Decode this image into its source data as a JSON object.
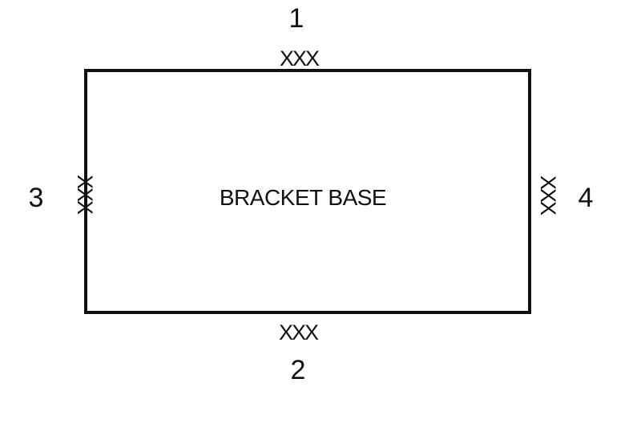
{
  "diagram": {
    "base_label": "BRACKET BASE",
    "weld_mark": "XXX",
    "positions": {
      "top": "1",
      "bottom": "2",
      "left": "3",
      "right": "4"
    }
  }
}
